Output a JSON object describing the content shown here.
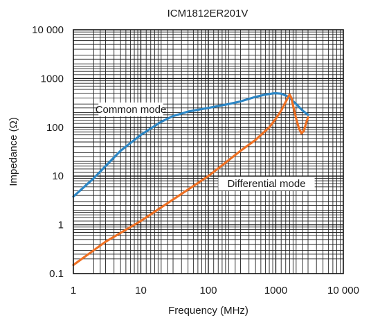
{
  "chart_data": {
    "type": "line",
    "title": "ICM1812ER201V",
    "xlabel": "Frequency (MHz)",
    "ylabel": "Impedance (Ω)",
    "x_scale": "log",
    "y_scale": "log",
    "xlim": [
      1,
      10000
    ],
    "ylim": [
      0.1,
      10000
    ],
    "grid": true,
    "x_ticks": [
      {
        "value": 1,
        "label": "1"
      },
      {
        "value": 10,
        "label": "10"
      },
      {
        "value": 100,
        "label": "100"
      },
      {
        "value": 1000,
        "label": "1000"
      },
      {
        "value": 10000,
        "label": "10 000"
      }
    ],
    "y_ticks": [
      {
        "value": 0.1,
        "label": "0.1"
      },
      {
        "value": 1,
        "label": "1"
      },
      {
        "value": 10,
        "label": "10"
      },
      {
        "value": 100,
        "label": "100"
      },
      {
        "value": 1000,
        "label": "1000"
      },
      {
        "value": 10000,
        "label": "10 000"
      }
    ],
    "series": [
      {
        "name": "Common mode",
        "color": "#2c86c5",
        "x": [
          1,
          2,
          3,
          5,
          10,
          20,
          30,
          50,
          100,
          200,
          300,
          500,
          700,
          900,
          1000,
          1200,
          1500,
          2000,
          2500,
          3000
        ],
        "y": [
          3.8,
          9,
          16,
          33,
          70,
          130,
          170,
          210,
          250,
          300,
          340,
          420,
          470,
          495,
          500,
          490,
          430,
          300,
          220,
          180
        ]
      },
      {
        "name": "Differential mode",
        "color": "#ee7023",
        "x": [
          1,
          3,
          10,
          30,
          100,
          300,
          500,
          800,
          1000,
          1200,
          1400,
          1600,
          1700,
          1800,
          2000,
          2200,
          2400,
          2600,
          2800,
          3000
        ],
        "y": [
          0.15,
          0.45,
          1.2,
          3.3,
          10,
          33,
          55,
          100,
          150,
          220,
          330,
          470,
          400,
          280,
          150,
          95,
          75,
          85,
          120,
          160
        ]
      }
    ],
    "annotations": [
      "Common mode",
      "Differential mode"
    ]
  }
}
